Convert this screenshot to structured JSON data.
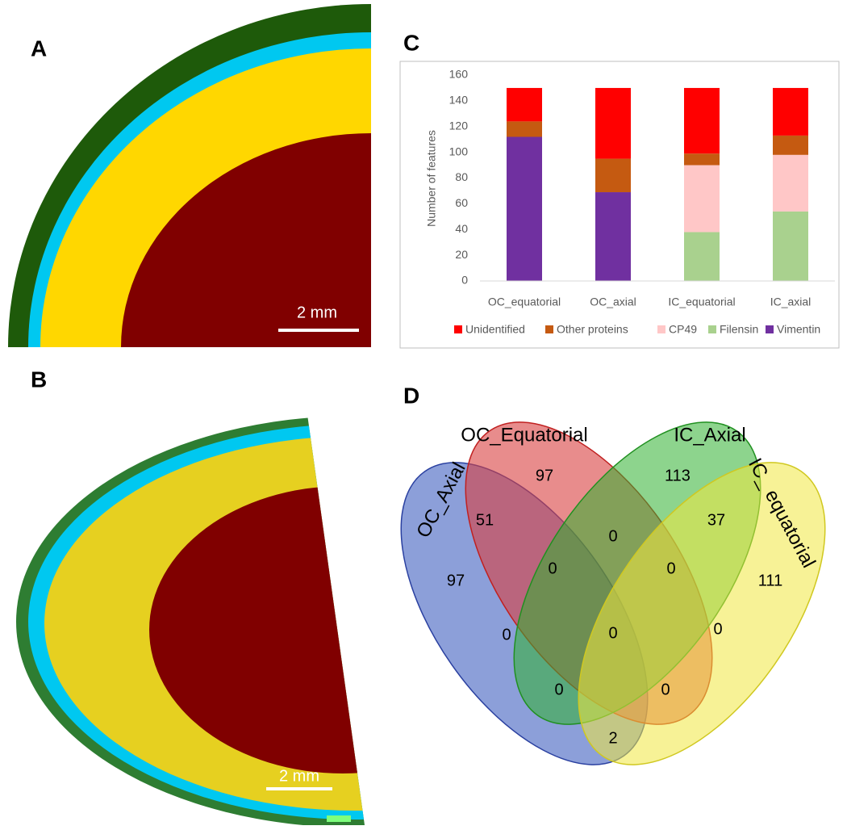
{
  "panels": {
    "A": {
      "letter": "A",
      "scale_bar": "2 mm"
    },
    "B": {
      "letter": "B",
      "scale_bar": "2 mm"
    },
    "C": {
      "letter": "C"
    },
    "D": {
      "letter": "D"
    }
  },
  "chart_data": {
    "type": "stacked_bar",
    "y_label": "Number of features",
    "categories": [
      "OC_equatorial",
      "OC_axial",
      "IC_equatorial",
      "IC_axial"
    ],
    "series": [
      {
        "name": "Unidentified",
        "color": "#ff0000",
        "values": [
          26,
          55,
          51,
          37
        ]
      },
      {
        "name": "Other proteins",
        "color": "#c55a11",
        "values": [
          12,
          26,
          9,
          15
        ]
      },
      {
        "name": "CP49",
        "color": "#ffc7c7",
        "values": [
          0,
          0,
          52,
          44
        ]
      },
      {
        "name": "Filensin",
        "color": "#a9d18e",
        "values": [
          0,
          0,
          38,
          54
        ]
      },
      {
        "name": "Vimentin",
        "color": "#7030a0",
        "values": [
          112,
          69,
          0,
          0
        ]
      }
    ],
    "ylim": [
      0,
      160
    ],
    "yticks": [
      0,
      20,
      40,
      60,
      80,
      100,
      120,
      140,
      160
    ],
    "grid": false,
    "legend": "bottom"
  },
  "venn": {
    "sets": [
      "OC_Equatorial",
      "IC_Axial",
      "OC_Axial",
      "IC_ equatorial"
    ],
    "counts": [
      97,
      113,
      51,
      0,
      37,
      97,
      0,
      0,
      111,
      0,
      0,
      0,
      0,
      0,
      2
    ]
  }
}
